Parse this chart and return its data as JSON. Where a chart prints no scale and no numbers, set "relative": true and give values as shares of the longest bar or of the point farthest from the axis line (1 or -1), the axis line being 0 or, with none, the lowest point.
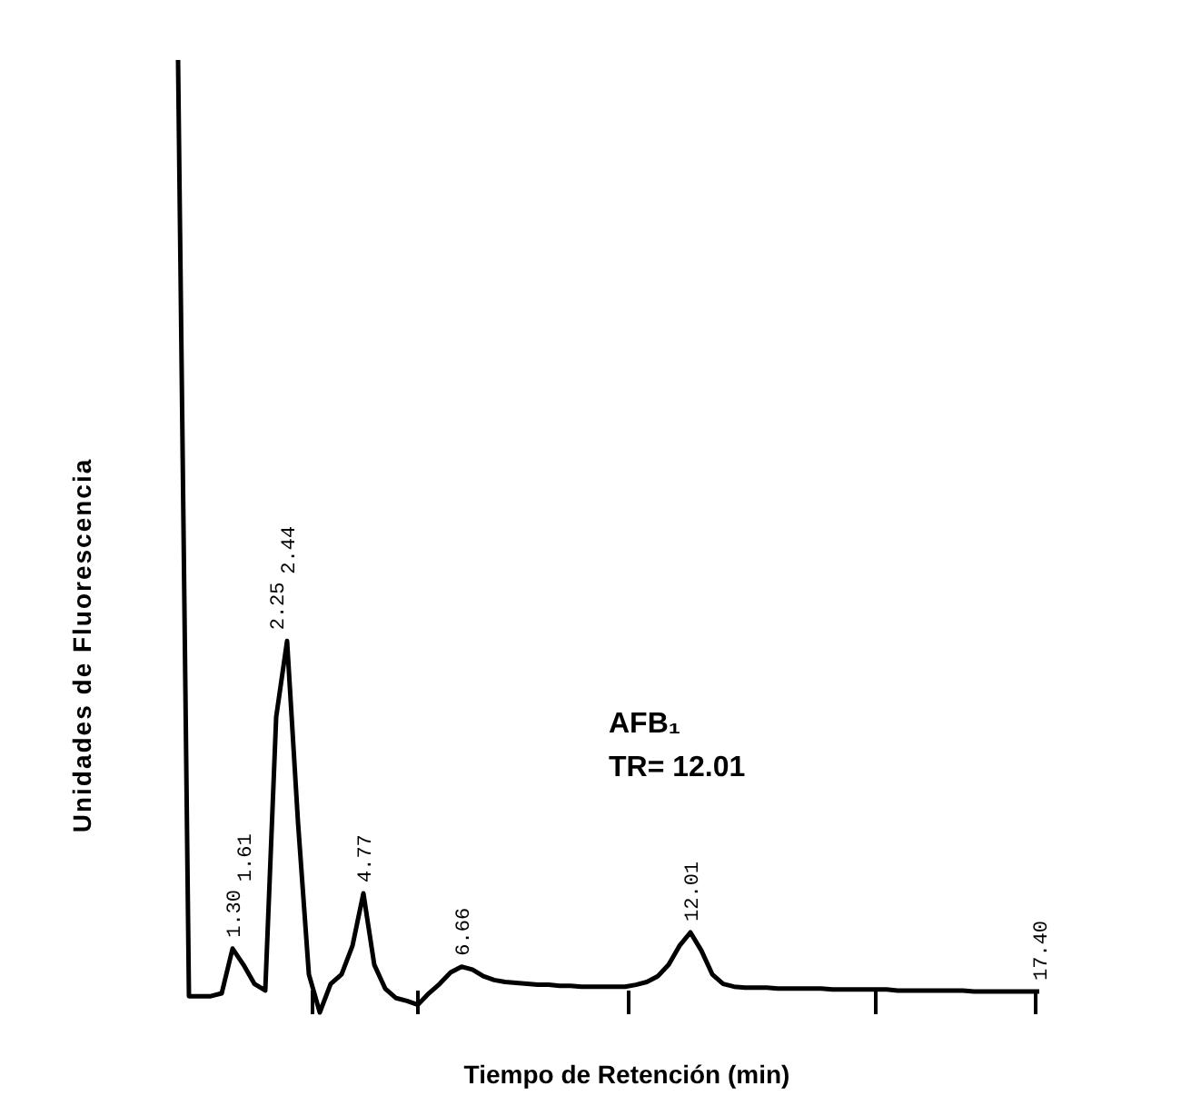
{
  "chart_data": {
    "type": "line",
    "relative": true,
    "xlabel": "Tiempo de Retención (min)",
    "ylabel": "Unidades de Fluorescencia",
    "categories": [
      null,
      null,
      null,
      null,
      null,
      null,
      null,
      null,
      null,
      null,
      null,
      null,
      null,
      null,
      null,
      null,
      null,
      null,
      null,
      null,
      null,
      null,
      null,
      null,
      null,
      null,
      null,
      null,
      null,
      null,
      null,
      null,
      null,
      null,
      null,
      null,
      null,
      null,
      null,
      null,
      null,
      null,
      null,
      null,
      null,
      null,
      null,
      null,
      null,
      null,
      null,
      null,
      null,
      null,
      null,
      null,
      null,
      null,
      null,
      null,
      null,
      null,
      null,
      null,
      null,
      null,
      null,
      null,
      null,
      null,
      null,
      null,
      null,
      null,
      null,
      null,
      null,
      null,
      null,
      null
    ],
    "series": [
      {
        "color": "#000000",
        "values": [
          1,
          0.017,
          0.017,
          0.017,
          0.02,
          0.067,
          0.05,
          0.03,
          0.023,
          0.31,
          0.39,
          0.2,
          0.04,
          0,
          0.03,
          0.04,
          0.07,
          0.125,
          0.05,
          0.025,
          0.015,
          0.012,
          0.008,
          0.02,
          0.03,
          0.042,
          0.048,
          0.045,
          0.038,
          0.034,
          0.032,
          0.031,
          0.03,
          0.029,
          0.029,
          0.028,
          0.028,
          0.027,
          0.027,
          0.027,
          0.027,
          0.027,
          0.029,
          0.032,
          0.038,
          0.05,
          0.07,
          0.084,
          0.065,
          0.04,
          0.03,
          0.027,
          0.026,
          0.026,
          0.026,
          0.025,
          0.025,
          0.025,
          0.025,
          0.025,
          0.024,
          0.024,
          0.024,
          0.024,
          0.024,
          0.024,
          0.023,
          0.023,
          0.023,
          0.023,
          0.023,
          0.023,
          0.023,
          0.022,
          0.022,
          0.022,
          0.022,
          0.022,
          0.022,
          0.022
        ],
        "line_style": "solid"
      }
    ],
    "grid": false,
    "marker": "none",
    "annotations": [
      "1.30",
      "1.61",
      "2.25",
      "2.44",
      "4.77",
      "6.66",
      "12.01",
      "17.40",
      "AFB₁",
      "TR= 12.01"
    ]
  }
}
